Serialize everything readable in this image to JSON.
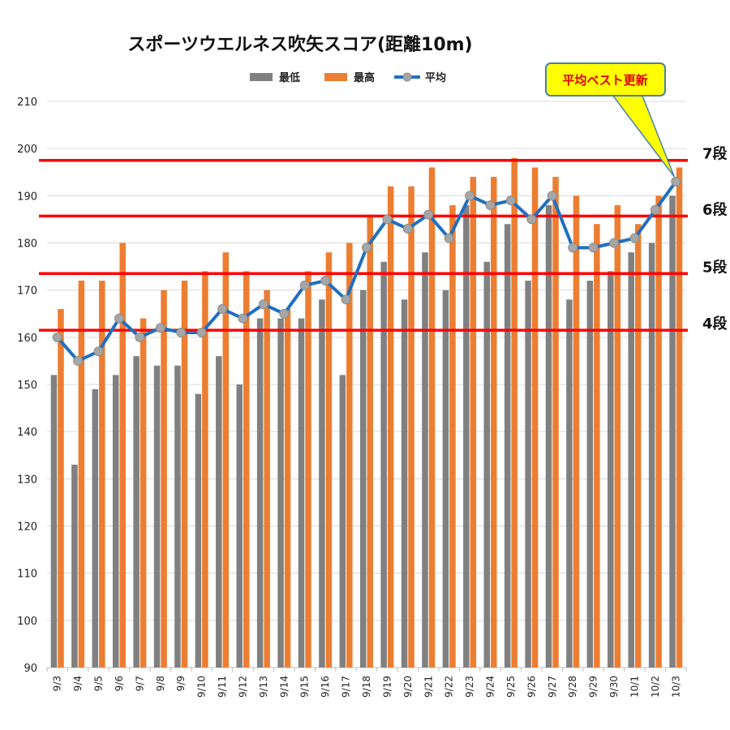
{
  "chart_data": {
    "type": "bar",
    "title": "スポーツウエルネス吹矢スコア(距離10m)",
    "xlabel": "",
    "ylabel": "",
    "ylim": [
      90,
      210
    ],
    "yticks": [
      90,
      100,
      110,
      120,
      130,
      140,
      150,
      160,
      170,
      180,
      190,
      200,
      210
    ],
    "grid": true,
    "legend_position": "top",
    "categories": [
      "9/3",
      "9/4",
      "9/5",
      "9/6",
      "9/7",
      "9/8",
      "9/9",
      "9/10",
      "9/11",
      "9/12",
      "9/13",
      "9/14",
      "9/15",
      "9/16",
      "9/17",
      "9/18",
      "9/19",
      "9/20",
      "9/21",
      "9/22",
      "9/23",
      "9/24",
      "9/25",
      "9/26",
      "9/27",
      "9/28",
      "9/29",
      "9/30",
      "10/1",
      "10/2",
      "10/3"
    ],
    "series": [
      {
        "name": "最低",
        "type": "bar",
        "color": "#808080",
        "values": [
          152,
          133,
          149,
          152,
          156,
          154,
          154,
          148,
          156,
          150,
          164,
          164,
          164,
          168,
          152,
          170,
          176,
          168,
          178,
          170,
          188,
          176,
          184,
          172,
          188,
          168,
          172,
          174,
          178,
          180,
          190
        ]
      },
      {
        "name": "最高",
        "type": "bar",
        "color": "#ed7d31",
        "values": [
          166,
          172,
          172,
          180,
          164,
          170,
          172,
          174,
          178,
          174,
          170,
          166,
          174,
          178,
          180,
          186,
          192,
          192,
          196,
          188,
          194,
          194,
          198,
          196,
          194,
          190,
          184,
          188,
          184,
          190,
          196
        ]
      },
      {
        "name": "平均",
        "type": "line",
        "color": "#1f6fc0",
        "marker_color": "#a6a6a6",
        "values": [
          160,
          155,
          157,
          164,
          160,
          162,
          161,
          161,
          166,
          164,
          167,
          165,
          171,
          172,
          168,
          179,
          185,
          183,
          186,
          181,
          190,
          188,
          189,
          185,
          190,
          179,
          179,
          180,
          181,
          187,
          193
        ]
      }
    ],
    "reference_lines": [
      {
        "label": "4段",
        "value": 161.5,
        "color": "#ff0000"
      },
      {
        "label": "5段",
        "value": 173.5,
        "color": "#ff0000"
      },
      {
        "label": "6段",
        "value": 185.7,
        "color": "#ff0000"
      },
      {
        "label": "7段",
        "value": 197.5,
        "color": "#ff0000"
      }
    ],
    "annotation": {
      "text": "平均ベスト更新",
      "fill": "#ffff00",
      "border": "#4a7eb0",
      "text_color": "#e00000",
      "target_category": "10/3"
    }
  }
}
